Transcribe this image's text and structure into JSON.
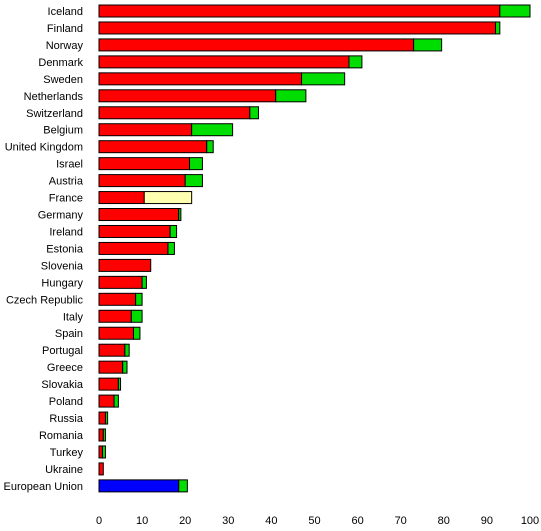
{
  "chart_data": {
    "type": "bar",
    "orientation": "horizontal",
    "stacked": true,
    "grid": false,
    "legend": "none",
    "xlim": [
      0,
      100
    ],
    "xticks": [
      0,
      10,
      20,
      30,
      40,
      50,
      60,
      70,
      80,
      90,
      100
    ],
    "categories": [
      "Iceland",
      "Finland",
      "Norway",
      "Denmark",
      "Sweden",
      "Netherlands",
      "Switzerland",
      "Belgium",
      "United Kingdom",
      "Israel",
      "Austria",
      "France",
      "Germany",
      "Ireland",
      "Estonia",
      "Slovenia",
      "Hungary",
      "Czech Republic",
      "Italy",
      "Spain",
      "Portugal",
      "Greece",
      "Slovakia",
      "Poland",
      "Russia",
      "Romania",
      "Turkey",
      "Ukraine",
      "European Union"
    ],
    "series": [
      {
        "color": "#ff0000",
        "values": [
          93,
          92,
          73,
          58,
          47,
          41,
          35,
          21.5,
          25,
          21,
          20,
          10.5,
          18.5,
          16.5,
          16,
          12,
          10,
          8.5,
          7.5,
          8,
          6,
          5.5,
          4.5,
          3.5,
          1.5,
          1,
          0.8,
          1,
          18.5
        ]
      },
      {
        "color": "#00dd00",
        "values": [
          7,
          1,
          6.5,
          3,
          10,
          7,
          2,
          9.5,
          1.5,
          3,
          4,
          0,
          0.5,
          1.5,
          1.5,
          0,
          1,
          1.5,
          2.5,
          1.5,
          1,
          1,
          0.5,
          1,
          0.5,
          0.5,
          0.7,
          0,
          2
        ]
      }
    ],
    "overrides": {
      "France": {
        "segment": 1,
        "color": "#ffffb0",
        "value": 11
      },
      "European Union": {
        "segment": 0,
        "color": "#0000ff"
      }
    }
  }
}
